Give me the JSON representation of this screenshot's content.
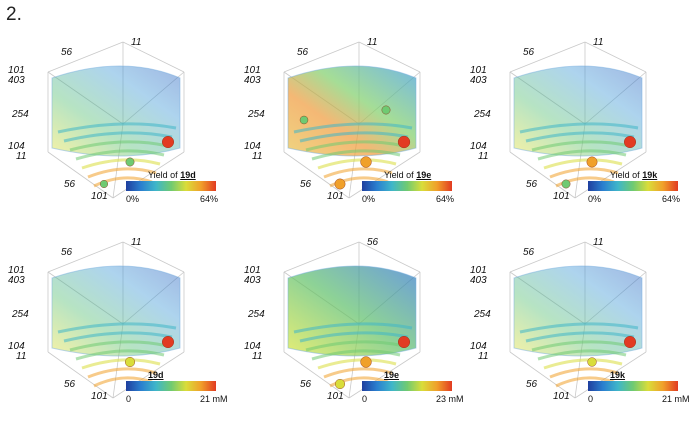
{
  "figure_label": "2.",
  "panels": [
    {
      "colorbar": {
        "prefix": "Yield of ",
        "compound": "19d",
        "suffix": "",
        "min": "0%",
        "max": "64%"
      },
      "axis_ticks": {
        "t_top": "11",
        "t_left_top": "56",
        "t_101_top": "101",
        "t_403": "403",
        "t_254": "254",
        "t_104": "104",
        "t_11_low": "11",
        "t_56_low": "56",
        "t_101_bottom": "101"
      },
      "surface_color": "blue",
      "spheres": [
        {
          "level": 0.95
        },
        {
          "level": 0.55
        },
        {
          "level": 0.45
        }
      ]
    },
    {
      "colorbar": {
        "prefix": "Yield of ",
        "compound": "19e",
        "suffix": "",
        "min": "0%",
        "max": "64%"
      },
      "axis_ticks": {
        "t_top": "11",
        "t_left_top": "56",
        "t_101_top": "101",
        "t_403": "403",
        "t_254": "254",
        "t_104": "104",
        "t_11_low": "11",
        "t_56_low": "56",
        "t_101_bottom": "101"
      },
      "surface_color": "multicolor",
      "spheres": [
        {
          "level": 0.98
        },
        {
          "level": 0.85
        },
        {
          "level": 0.8
        },
        {
          "level": 0.55
        },
        {
          "level": 0.5
        }
      ]
    },
    {
      "colorbar": {
        "prefix": "Yield of ",
        "compound": "19k",
        "suffix": "",
        "min": "0%",
        "max": "64%"
      },
      "axis_ticks": {
        "t_top": "11",
        "t_left_top": "56",
        "t_101_top": "101",
        "t_403": "403",
        "t_254": "254",
        "t_104": "104",
        "t_11_low": "11",
        "t_56_low": "56",
        "t_101_bottom": "101"
      },
      "surface_color": "blue",
      "spheres": [
        {
          "level": 0.95
        },
        {
          "level": 0.8
        },
        {
          "level": 0.55
        }
      ]
    },
    {
      "colorbar": {
        "prefix": "",
        "compound": "19d",
        "suffix": "",
        "min": "0",
        "max": "21 mM"
      },
      "axis_ticks": {
        "t_top": "11",
        "t_left_top": "56",
        "t_101_top": "101",
        "t_403": "403",
        "t_254": "254",
        "t_104": "104",
        "t_11_low": "11",
        "t_56_low": "56",
        "t_101_bottom": "101"
      },
      "surface_color": "blue",
      "spheres": [
        {
          "level": 0.95
        },
        {
          "level": 0.7
        }
      ]
    },
    {
      "colorbar": {
        "prefix": "",
        "compound": "19e",
        "suffix": "",
        "min": "0",
        "max": "23 mM"
      },
      "axis_ticks": {
        "t_top": "56",
        "t_left_top": "",
        "t_101_top": "101",
        "t_403": "403",
        "t_254": "254",
        "t_104": "104",
        "t_11_low": "11",
        "t_56_low": "56",
        "t_101_bottom": "101"
      },
      "surface_color": "green",
      "spheres": [
        {
          "level": 0.95
        },
        {
          "level": 0.85
        },
        {
          "level": 0.7
        }
      ]
    },
    {
      "colorbar": {
        "prefix": "",
        "compound": "19k",
        "suffix": "",
        "min": "0",
        "max": "21 mM"
      },
      "axis_ticks": {
        "t_top": "11",
        "t_left_top": "56",
        "t_101_top": "101",
        "t_403": "403",
        "t_254": "254",
        "t_104": "104",
        "t_11_low": "11",
        "t_56_low": "56",
        "t_101_bottom": "101"
      },
      "surface_color": "blue",
      "spheres": [
        {
          "level": 0.95
        },
        {
          "level": 0.6
        }
      ]
    }
  ]
}
